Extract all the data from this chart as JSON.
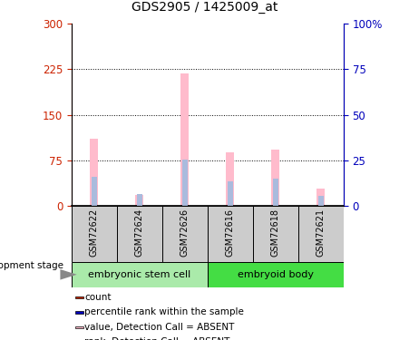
{
  "title": "GDS2905 / 1425009_at",
  "samples": [
    "GSM72622",
    "GSM72624",
    "GSM72626",
    "GSM72616",
    "GSM72618",
    "GSM72621"
  ],
  "group1_name": "embryonic stem cell",
  "group2_name": "embryoid body",
  "group1_color": "#aaeaaa",
  "group2_color": "#44dd44",
  "value_absent": [
    110,
    18,
    218,
    88,
    92,
    28
  ],
  "rank_absent": [
    48,
    20,
    76,
    40,
    44,
    16
  ],
  "left_ylim": [
    0,
    300
  ],
  "right_ylim": [
    0,
    100
  ],
  "left_yticks": [
    0,
    75,
    150,
    225,
    300
  ],
  "right_yticks": [
    0,
    25,
    50,
    75,
    100
  ],
  "right_yticklabels": [
    "0",
    "25",
    "50",
    "75",
    "100%"
  ],
  "left_color": "#cc2200",
  "right_color": "#0000bb",
  "value_absent_color": "#ffbbcc",
  "rank_absent_color": "#aabbdd",
  "count_color": "#cc2200",
  "rank_color": "#0000bb",
  "bg_color": "#cccccc",
  "development_stage_label": "development stage",
  "legend_items": [
    [
      "#cc2200",
      "count"
    ],
    [
      "#0000bb",
      "percentile rank within the sample"
    ],
    [
      "#ffbbcc",
      "value, Detection Call = ABSENT"
    ],
    [
      "#aabbdd",
      "rank, Detection Call = ABSENT"
    ]
  ]
}
